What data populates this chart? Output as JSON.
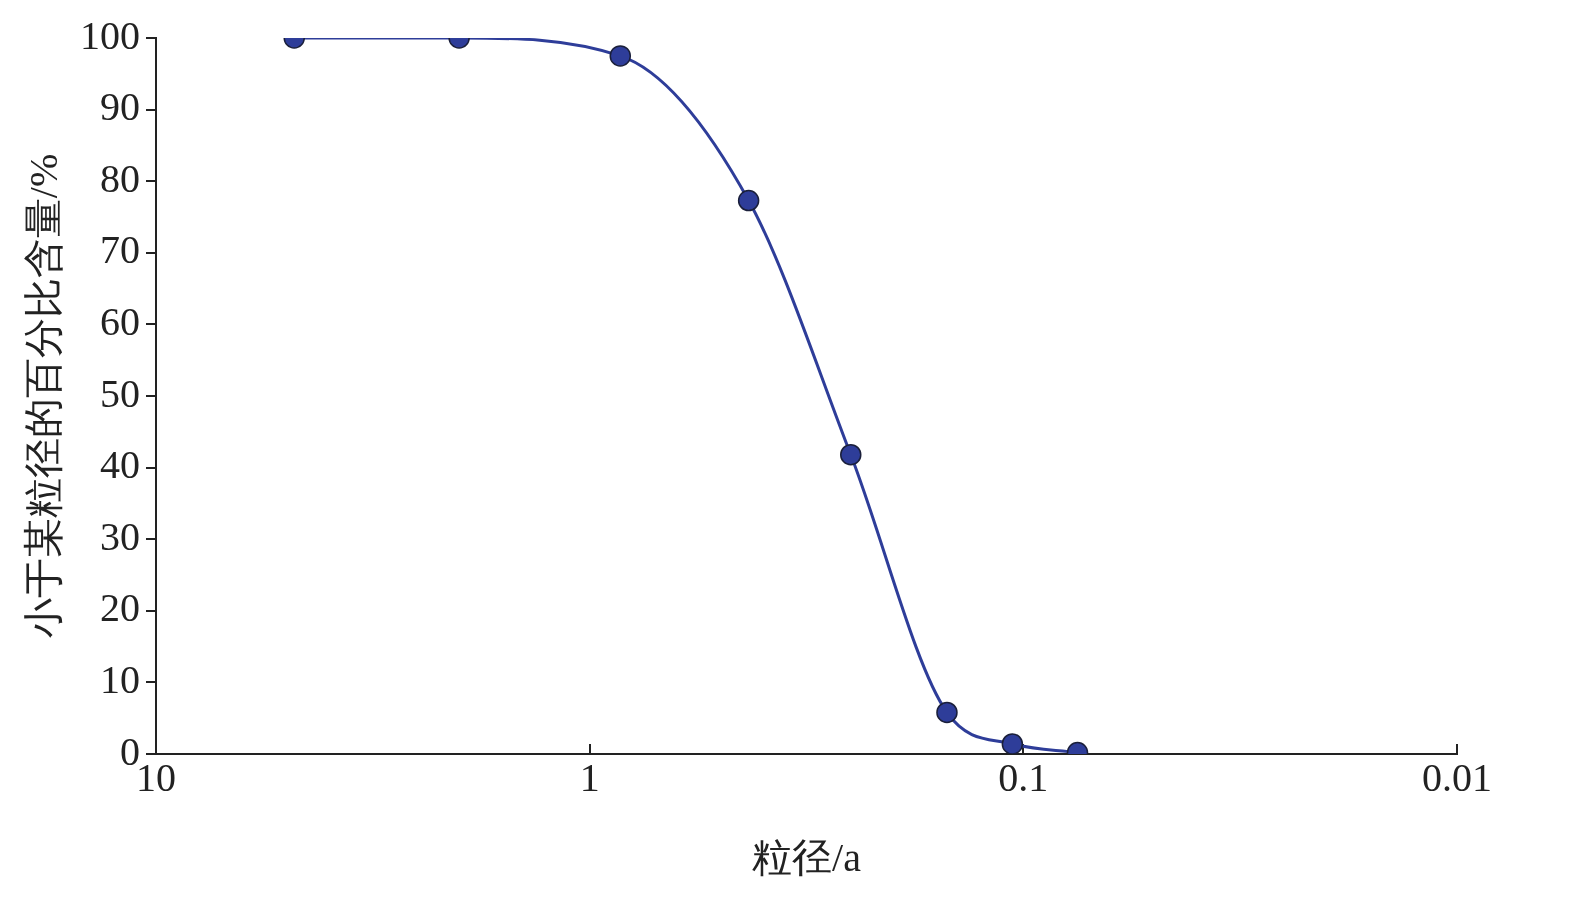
{
  "chart_data": {
    "type": "line",
    "xlabel": "粒径/a",
    "ylabel": "小于某粒径的百分比含量/%",
    "x": [
      4.8,
      2.0,
      0.85,
      0.43,
      0.25,
      0.15,
      0.106,
      0.075
    ],
    "series": [
      {
        "color": "#2e3d99",
        "values": [
          100,
          100,
          97.5,
          77.3,
          41.8,
          5.8,
          1.4,
          0.2
        ]
      }
    ],
    "log": "x",
    "xlim": [
      10,
      0.01
    ],
    "xticks": [
      10,
      1,
      0.1,
      0.01
    ],
    "ylim": [
      0,
      100
    ],
    "yticks": [
      0,
      10,
      20,
      30,
      40,
      50,
      60,
      70,
      80,
      90,
      100
    ],
    "grid": false,
    "legend": false,
    "marker": "circle",
    "line_style": "solid"
  }
}
